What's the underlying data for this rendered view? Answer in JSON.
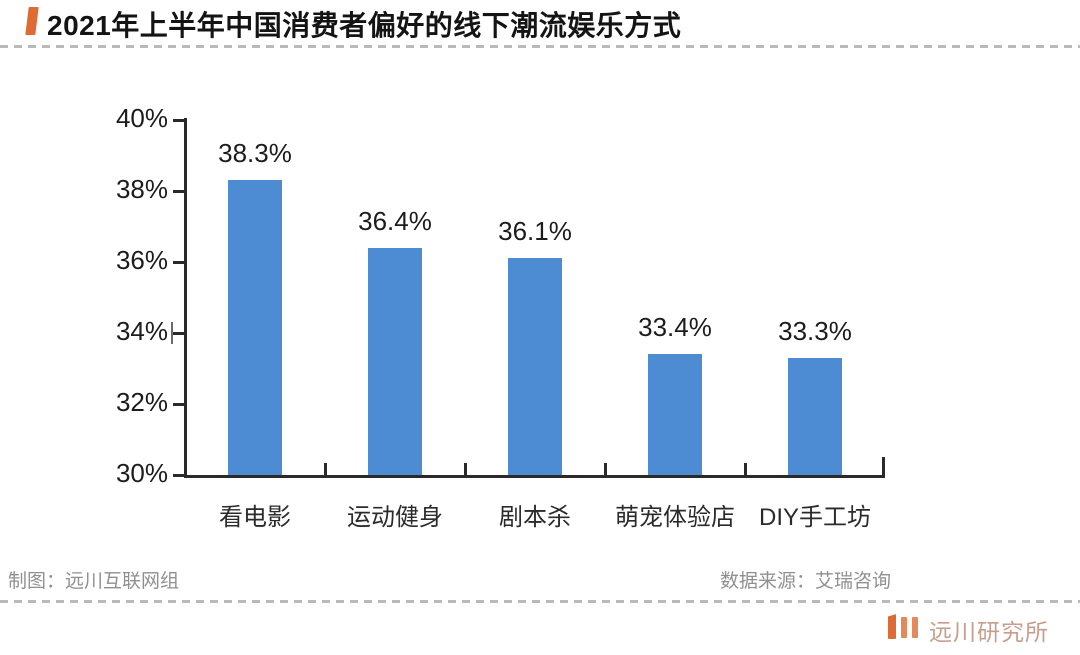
{
  "header": {
    "title": "2021年上半年中国消费者偏好的线下潮流娱乐方式"
  },
  "footer": {
    "credit": "制图：远川互联网组",
    "source": "数据来源：艾瑞咨询"
  },
  "logo": {
    "text": "远川研究所",
    "icon": "three-orange-bars-icon"
  },
  "colors": {
    "bar": "#4d8bd3",
    "accent_orange": "#dd6b33",
    "logo_orange": "#e28a5e",
    "logo_text": "#c79e8c",
    "dash_gray": "#b9b9b9",
    "axis_black": "#2a2a2a",
    "footer_gray": "#909090"
  },
  "chart_data": {
    "type": "bar",
    "title": "2021年上半年中国消费者偏好的线下潮流娱乐方式",
    "categories": [
      "看电影",
      "运动健身",
      "剧本杀",
      "萌宠体验店",
      "DIY手工坊"
    ],
    "values": [
      38.3,
      36.4,
      36.1,
      33.4,
      33.3
    ],
    "value_labels": [
      "38.3%",
      "36.4%",
      "36.1%",
      "33.4%",
      "33.3%"
    ],
    "xlabel": "",
    "ylabel": "",
    "ylim": [
      30,
      40
    ],
    "yticks": [
      40,
      38,
      36,
      34,
      32,
      30
    ],
    "ytick_labels": [
      "40%",
      "38%",
      "36%",
      "34%",
      "32%",
      "30%"
    ],
    "grid": false,
    "legend": null,
    "bar_color": "#4d8bd3",
    "unit": "%"
  }
}
